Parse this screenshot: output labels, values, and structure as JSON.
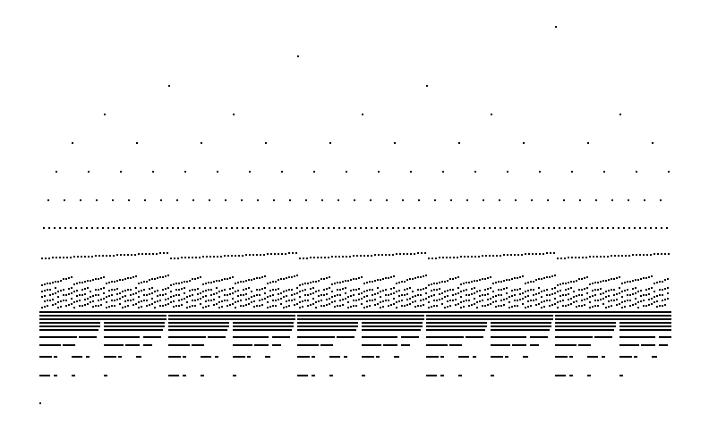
{
  "dot_color": "#000000",
  "background_color": "#ffffff",
  "chart_data": {
    "type": "scatter",
    "title": "",
    "xlabel": "",
    "ylabel": "",
    "grid": false,
    "axes_visible": false,
    "legend": "none",
    "description_of_structure": "",
    "sparse_rows": [
      {
        "row": 1,
        "x": [
          620
        ]
      },
      {
        "row": 2,
        "x": [
          332
        ]
      },
      {
        "row": 3,
        "x": [
          188,
          476
        ]
      },
      {
        "row": 4,
        "x": [
          116,
          260,
          404,
          548,
          692
        ]
      },
      {
        "row": 5,
        "x": [
          80,
          152,
          224,
          296,
          368,
          440,
          512,
          584,
          656,
          728
        ]
      },
      {
        "row": 6,
        "x": [
          62,
          98,
          134,
          170,
          206,
          242,
          278,
          314,
          350,
          386,
          422,
          458,
          494,
          530,
          566,
          602,
          638,
          674,
          710,
          746
        ]
      },
      {
        "row": 7,
        "x_start": 53,
        "x_step": 18,
        "count": 39
      }
    ],
    "dense_band": {
      "x_min": 44,
      "x_max": 748,
      "period": 144
    },
    "bottom_tail": [
      {
        "x": 44,
        "y_row": "last"
      }
    ]
  }
}
